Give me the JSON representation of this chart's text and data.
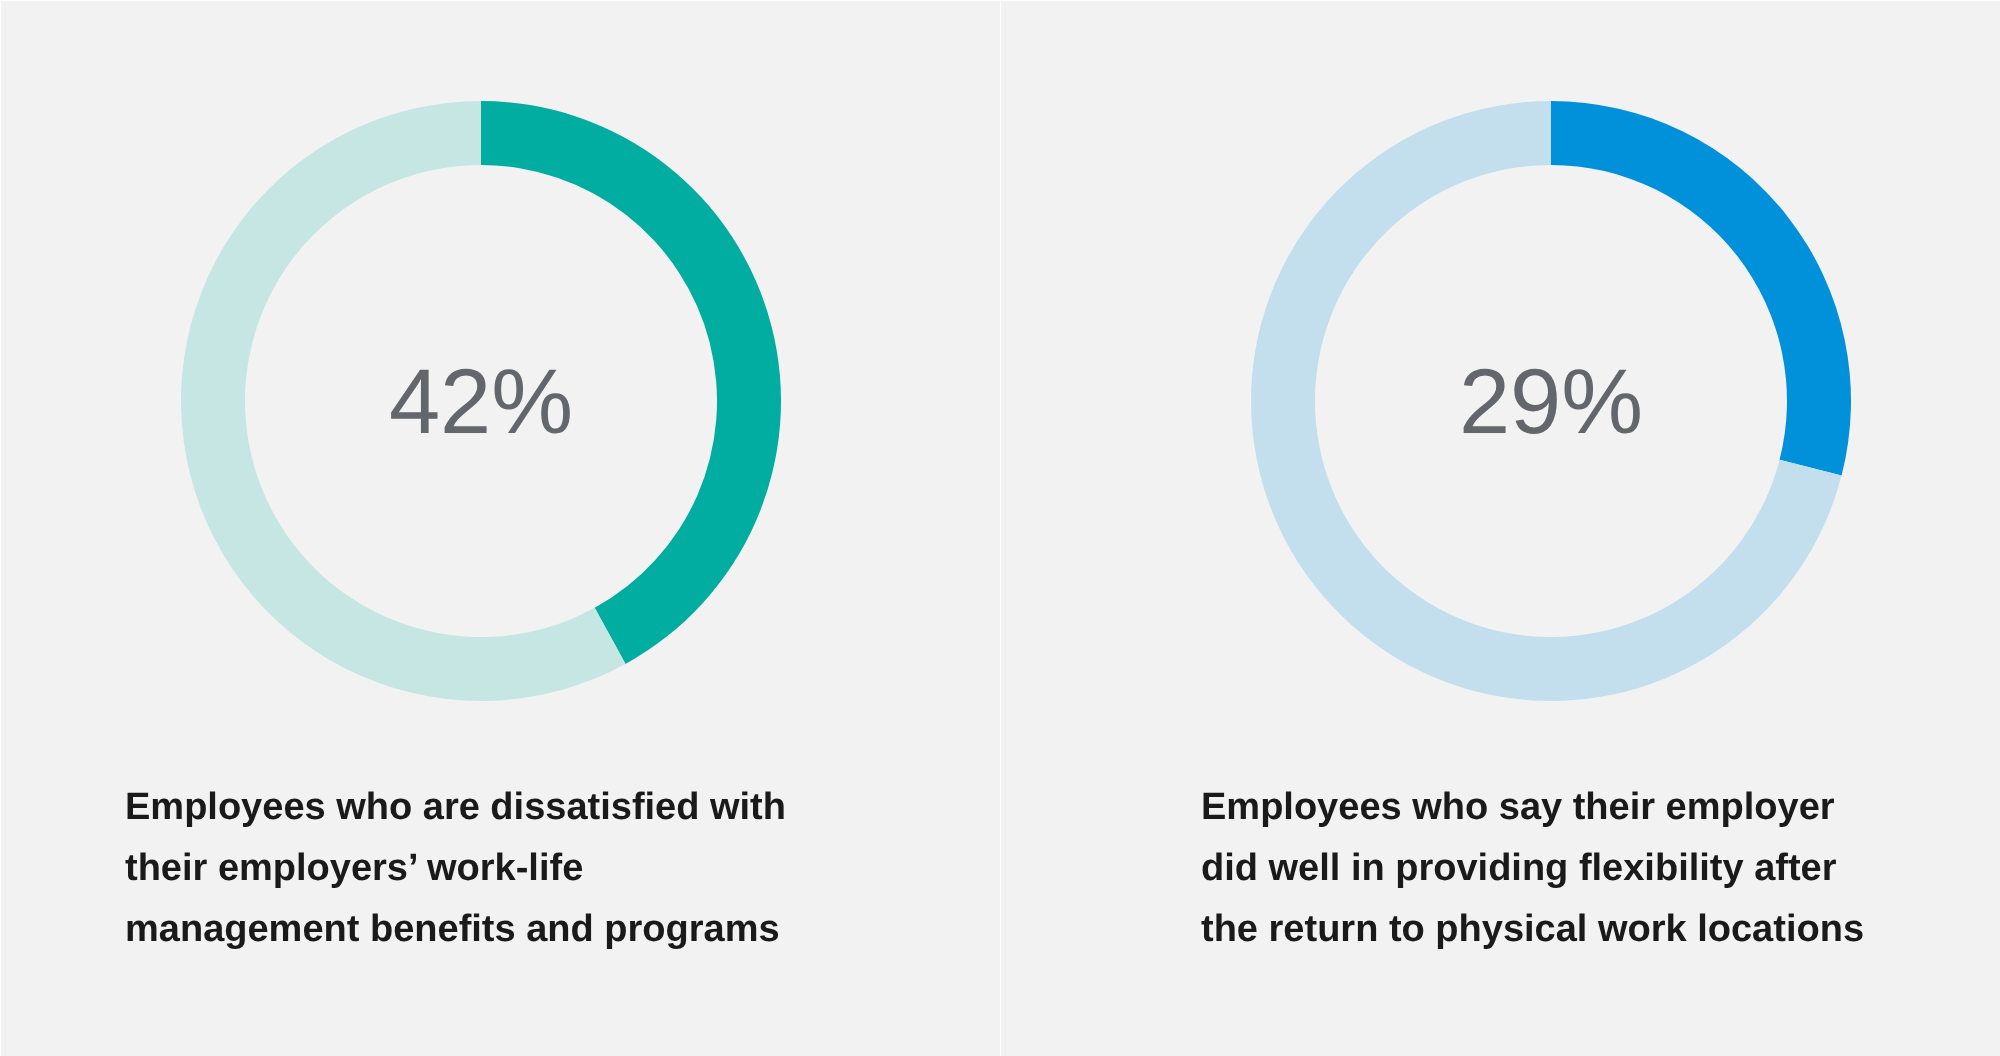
{
  "chart_data": [
    {
      "type": "donut",
      "title": "Employees who are dissatisfied with\ntheir employers’ work-life\nmanagement benefits and programs",
      "categories": [
        null,
        null
      ],
      "values": [
        42,
        58
      ],
      "colors": [
        "#00ada0",
        "#c5e6e3"
      ],
      "value_labels": [
        "42%",
        null
      ]
    },
    {
      "type": "donut",
      "title": "Employees who say their employer\ndid well in providing flexibility after\nthe return to physical work locations",
      "categories": [
        null,
        null
      ],
      "values": [
        29,
        71
      ],
      "colors": [
        "#0091da",
        "#c3dfee"
      ],
      "value_labels": [
        "29%",
        null
      ]
    }
  ]
}
